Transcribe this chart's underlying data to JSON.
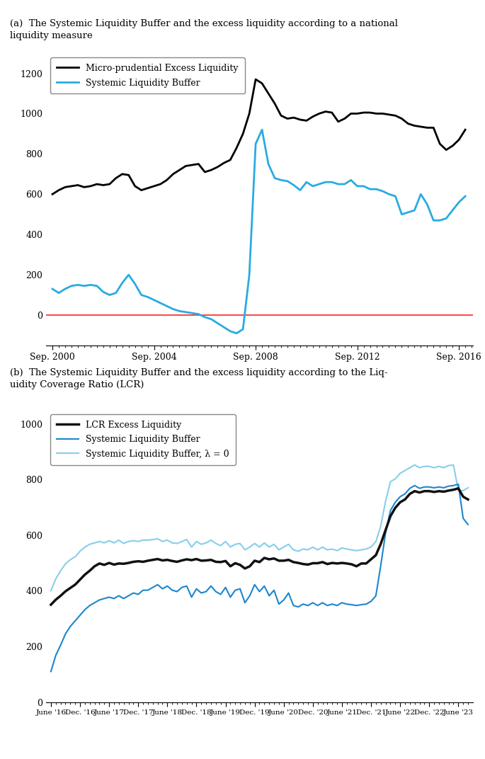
{
  "title_a": "(a)  The Systemic Liquidity Buffer and the excess liquidity according to a national\nliquidity measure",
  "title_b": "(b)  The Systemic Liquidity Buffer and the excess liquidity according to the Liq-\nuidity Coverage Ratio (LCR)",
  "panel_a": {
    "legend": [
      "Micro-prudential Excess Liquidity",
      "Systemic Liquidity Buffer"
    ],
    "colors": [
      "#000000",
      "#29ABE2"
    ],
    "zero_line_color": "#FF3333",
    "ylim": [
      -150,
      1300
    ],
    "yticks": [
      0,
      200,
      400,
      600,
      800,
      1000,
      1200
    ],
    "micro_x": [
      2000.75,
      2001.0,
      2001.25,
      2001.5,
      2001.75,
      2002.0,
      2002.25,
      2002.5,
      2002.75,
      2003.0,
      2003.25,
      2003.5,
      2003.75,
      2004.0,
      2004.25,
      2004.5,
      2004.75,
      2005.0,
      2005.25,
      2005.5,
      2005.75,
      2006.0,
      2006.25,
      2006.5,
      2006.75,
      2007.0,
      2007.25,
      2007.5,
      2007.75,
      2008.0,
      2008.25,
      2008.5,
      2008.75,
      2009.0,
      2009.25,
      2009.5,
      2009.75,
      2010.0,
      2010.25,
      2010.5,
      2010.75,
      2011.0,
      2011.25,
      2011.5,
      2011.75,
      2012.0,
      2012.25,
      2012.5,
      2012.75,
      2013.0,
      2013.25,
      2013.5,
      2013.75,
      2014.0,
      2014.25,
      2014.5,
      2014.75,
      2015.0,
      2015.25,
      2015.5,
      2015.75,
      2016.0,
      2016.25,
      2016.5,
      2016.75,
      2017.0
    ],
    "micro_y": [
      600,
      620,
      635,
      640,
      645,
      635,
      640,
      650,
      645,
      650,
      680,
      700,
      695,
      640,
      620,
      630,
      640,
      650,
      670,
      700,
      720,
      740,
      745,
      750,
      710,
      720,
      735,
      755,
      770,
      830,
      900,
      1000,
      1170,
      1150,
      1100,
      1050,
      990,
      975,
      980,
      970,
      965,
      985,
      1000,
      1010,
      1005,
      960,
      975,
      1000,
      1000,
      1005,
      1005,
      1000,
      1000,
      995,
      990,
      975,
      950,
      940,
      935,
      930,
      930,
      850,
      820,
      840,
      870,
      920
    ],
    "slb_x": [
      2000.75,
      2001.0,
      2001.25,
      2001.5,
      2001.75,
      2002.0,
      2002.25,
      2002.5,
      2002.75,
      2003.0,
      2003.25,
      2003.5,
      2003.75,
      2004.0,
      2004.25,
      2004.5,
      2004.75,
      2005.0,
      2005.25,
      2005.5,
      2005.75,
      2006.0,
      2006.25,
      2006.5,
      2006.75,
      2007.0,
      2007.25,
      2007.5,
      2007.75,
      2008.0,
      2008.25,
      2008.5,
      2008.75,
      2009.0,
      2009.25,
      2009.5,
      2009.75,
      2010.0,
      2010.25,
      2010.5,
      2010.75,
      2011.0,
      2011.25,
      2011.5,
      2011.75,
      2012.0,
      2012.25,
      2012.5,
      2012.75,
      2013.0,
      2013.25,
      2013.5,
      2013.75,
      2014.0,
      2014.25,
      2014.5,
      2014.75,
      2015.0,
      2015.25,
      2015.5,
      2015.75,
      2016.0,
      2016.25,
      2016.5,
      2016.75,
      2017.0
    ],
    "slb_y": [
      130,
      110,
      130,
      145,
      150,
      145,
      150,
      145,
      115,
      100,
      110,
      160,
      200,
      155,
      100,
      90,
      75,
      60,
      45,
      30,
      20,
      15,
      10,
      5,
      -10,
      -20,
      -40,
      -60,
      -80,
      -90,
      -70,
      200,
      850,
      920,
      750,
      680,
      670,
      665,
      645,
      620,
      660,
      640,
      650,
      660,
      660,
      650,
      650,
      670,
      640,
      640,
      625,
      625,
      615,
      600,
      590,
      500,
      510,
      520,
      600,
      550,
      470,
      470,
      480,
      520,
      560,
      590
    ],
    "xtick_positions": [
      2000.75,
      2004.75,
      2008.75,
      2012.75,
      2016.75
    ],
    "xtick_labels": [
      "Sep. 2000",
      "Sep. 2004",
      "Sep. 2008",
      "Sep. 2012",
      "Sep. 2016"
    ]
  },
  "panel_b": {
    "legend": [
      "LCR Excess Liquidity",
      "Systemic Liquidity Buffer",
      "Systemic Liquidity Buffer, λ = 0"
    ],
    "colors_lcr": "#111111",
    "colors_slb": "#1C86CD",
    "colors_slb0": "#87CEEB",
    "ylim": [
      0,
      1050
    ],
    "yticks": [
      0,
      200,
      400,
      600,
      800,
      1000
    ],
    "lcr_x": [
      0,
      1,
      2,
      3,
      4,
      5,
      6,
      7,
      8,
      9,
      10,
      11,
      12,
      13,
      14,
      15,
      16,
      17,
      18,
      19,
      20,
      21,
      22,
      23,
      24,
      25,
      26,
      27,
      28,
      29,
      30,
      31,
      32,
      33,
      34,
      35,
      36,
      37,
      38,
      39,
      40,
      41,
      42,
      43,
      44,
      45,
      46,
      47,
      48,
      49,
      50,
      51,
      52,
      53,
      54,
      55,
      56,
      57,
      58,
      59,
      60,
      61,
      62,
      63,
      64,
      65,
      66,
      67,
      68,
      69,
      70,
      71,
      72,
      73,
      74,
      75,
      76,
      77,
      78,
      79,
      80,
      81,
      82,
      83,
      84,
      85,
      86
    ],
    "lcr_y": [
      350,
      368,
      382,
      398,
      410,
      422,
      440,
      458,
      472,
      488,
      498,
      493,
      500,
      494,
      498,
      497,
      500,
      504,
      506,
      504,
      508,
      511,
      514,
      509,
      511,
      507,
      504,
      509,
      513,
      510,
      514,
      508,
      509,
      511,
      504,
      503,
      507,
      488,
      499,
      493,
      480,
      488,
      508,
      503,
      518,
      513,
      516,
      508,
      508,
      511,
      503,
      500,
      496,
      494,
      499,
      499,
      503,
      496,
      500,
      498,
      500,
      498,
      495,
      488,
      498,
      498,
      513,
      528,
      568,
      618,
      668,
      698,
      718,
      728,
      748,
      758,
      753,
      758,
      758,
      755,
      758,
      756,
      760,
      763,
      768,
      738,
      728
    ],
    "slb_x": [
      0,
      1,
      2,
      3,
      4,
      5,
      6,
      7,
      8,
      9,
      10,
      11,
      12,
      13,
      14,
      15,
      16,
      17,
      18,
      19,
      20,
      21,
      22,
      23,
      24,
      25,
      26,
      27,
      28,
      29,
      30,
      31,
      32,
      33,
      34,
      35,
      36,
      37,
      38,
      39,
      40,
      41,
      42,
      43,
      44,
      45,
      46,
      47,
      48,
      49,
      50,
      51,
      52,
      53,
      54,
      55,
      56,
      57,
      58,
      59,
      60,
      61,
      62,
      63,
      64,
      65,
      66,
      67,
      68,
      69,
      70,
      71,
      72,
      73,
      74,
      75,
      76,
      77,
      78,
      79,
      80,
      81,
      82,
      83,
      84,
      85,
      86
    ],
    "slb_y": [
      110,
      168,
      205,
      245,
      272,
      292,
      312,
      332,
      347,
      357,
      367,
      372,
      377,
      372,
      382,
      372,
      382,
      392,
      387,
      402,
      402,
      412,
      422,
      407,
      417,
      402,
      397,
      412,
      417,
      377,
      407,
      392,
      397,
      417,
      397,
      387,
      412,
      377,
      402,
      407,
      357,
      382,
      422,
      397,
      417,
      382,
      402,
      352,
      367,
      392,
      347,
      342,
      352,
      347,
      357,
      347,
      357,
      347,
      352,
      347,
      357,
      352,
      350,
      347,
      350,
      352,
      362,
      382,
      490,
      608,
      688,
      718,
      738,
      748,
      768,
      778,
      768,
      773,
      773,
      770,
      773,
      770,
      776,
      778,
      783,
      660,
      638
    ],
    "slb0_x": [
      0,
      1,
      2,
      3,
      4,
      5,
      6,
      7,
      8,
      9,
      10,
      11,
      12,
      13,
      14,
      15,
      16,
      17,
      18,
      19,
      20,
      21,
      22,
      23,
      24,
      25,
      26,
      27,
      28,
      29,
      30,
      31,
      32,
      33,
      34,
      35,
      36,
      37,
      38,
      39,
      40,
      41,
      42,
      43,
      44,
      45,
      46,
      47,
      48,
      49,
      50,
      51,
      52,
      53,
      54,
      55,
      56,
      57,
      58,
      59,
      60,
      61,
      62,
      63,
      64,
      65,
      66,
      67,
      68,
      69,
      70,
      71,
      72,
      73,
      74,
      75,
      76,
      77,
      78,
      79,
      80,
      81,
      82,
      83,
      84,
      85,
      86
    ],
    "slb0_y": [
      400,
      443,
      472,
      497,
      512,
      522,
      542,
      557,
      567,
      572,
      577,
      572,
      580,
      572,
      582,
      570,
      577,
      580,
      577,
      582,
      582,
      584,
      587,
      577,
      582,
      572,
      570,
      577,
      584,
      557,
      577,
      567,
      572,
      582,
      570,
      562,
      577,
      557,
      567,
      570,
      547,
      557,
      570,
      557,
      572,
      557,
      567,
      547,
      557,
      567,
      547,
      542,
      550,
      547,
      557,
      547,
      557,
      547,
      550,
      544,
      554,
      550,
      547,
      544,
      547,
      550,
      557,
      577,
      632,
      722,
      792,
      802,
      822,
      832,
      842,
      852,
      842,
      847,
      847,
      842,
      847,
      842,
      850,
      852,
      760,
      760,
      770
    ],
    "xtick_positions": [
      0,
      6,
      12,
      18,
      24,
      30,
      36,
      42,
      48,
      54,
      60,
      66,
      72,
      78,
      84
    ],
    "xtick_labels": [
      "June '16",
      "Dec. '16",
      "June '17",
      "Dec. '17",
      "June '18",
      "Dec. '18",
      "June '19",
      "Dec. '19",
      "June '20",
      "Dec. '20",
      "June '21",
      "Dec. '21",
      "June '22",
      "Dec. '22",
      "June '23"
    ]
  },
  "bg_color": "#FFFFFF"
}
